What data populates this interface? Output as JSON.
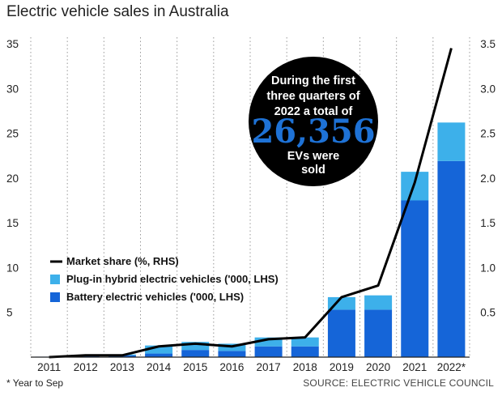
{
  "title": "Electric vehicle sales in Australia",
  "footnote": "* Year to Sep",
  "source": "SOURCE: ELECTRIC VEHICLE COUNCIL",
  "callout": {
    "lines": [
      "During the first",
      "three quarters of",
      "2022 a total of"
    ],
    "number": "26,356",
    "tail": [
      "EVs were",
      "sold"
    ]
  },
  "colors": {
    "bev": "#1565d8",
    "phev": "#3db0ea",
    "line": "#000000",
    "callout_bg": "#000000",
    "callout_number": "#1e72d6",
    "grid": "#999999"
  },
  "chart_data": {
    "type": "bar",
    "stacked": true,
    "categories": [
      "2011",
      "2012",
      "2013",
      "2014",
      "2015",
      "2016",
      "2017",
      "2018",
      "2019",
      "2020",
      "2021",
      "2022*"
    ],
    "series": [
      {
        "name": "Battery electric vehicles ('000, LHS)",
        "axis": "left",
        "values": [
          0.05,
          0.2,
          0.2,
          0.4,
          0.8,
          0.7,
          1.2,
          1.2,
          5.3,
          5.3,
          17.5,
          21.9
        ]
      },
      {
        "name": "Plug-in hybrid electric vehicles ('000, LHS)",
        "axis": "left",
        "values": [
          0.0,
          0.05,
          0.1,
          0.9,
          0.9,
          0.8,
          1.0,
          1.0,
          1.4,
          1.6,
          3.2,
          4.3
        ]
      },
      {
        "name": "Market share (%, RHS)",
        "type": "line",
        "axis": "right",
        "values": [
          0.0,
          0.02,
          0.02,
          0.12,
          0.15,
          0.12,
          0.2,
          0.22,
          0.67,
          0.8,
          1.95,
          3.45
        ]
      }
    ],
    "ylim_left": [
      0,
      35
    ],
    "ylim_right": [
      0,
      3.5
    ],
    "yticks_left": [
      "5",
      "10",
      "15",
      "20",
      "25",
      "30",
      "35"
    ],
    "yticks_right": [
      "0.5",
      "1.0",
      "1.5",
      "2.0",
      "2.5",
      "3.0",
      "3.5"
    ],
    "legend_order": [
      "Market share (%, RHS)",
      "Plug-in hybrid electric vehicles ('000, LHS)",
      "Battery electric vehicles ('000, LHS)"
    ],
    "grid": "vertical-dotted",
    "legend_position": "lower-left"
  }
}
